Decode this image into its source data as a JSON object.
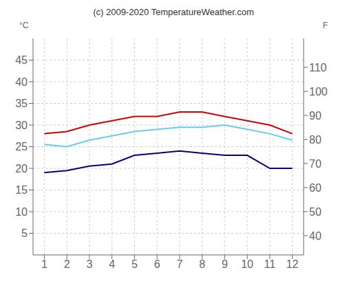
{
  "chart_data": {
    "type": "line",
    "title": "(c) 2009-2020 TemperatureWeather.com",
    "ylabel": "°C",
    "y2label": "F",
    "x": [
      1,
      2,
      3,
      4,
      5,
      6,
      7,
      8,
      9,
      10,
      11,
      12
    ],
    "series": [
      {
        "color": "#cc0000",
        "values": [
          28,
          28.5,
          30,
          31,
          32,
          32,
          33,
          33,
          32,
          31,
          30,
          28
        ]
      },
      {
        "color": "#66ccee",
        "values": [
          25.5,
          25,
          26.5,
          27.5,
          28.5,
          29,
          29.5,
          29.5,
          30,
          29,
          28,
          26.5
        ]
      },
      {
        "color": "#000080",
        "values": [
          19,
          19.5,
          20.5,
          21,
          23,
          23.5,
          24,
          23.5,
          23,
          23,
          20,
          20
        ]
      }
    ],
    "xlim": [
      0.5,
      12.5
    ],
    "xticks": [
      1,
      2,
      3,
      4,
      5,
      6,
      7,
      8,
      9,
      10,
      11,
      12
    ],
    "ylim": [
      0,
      50
    ],
    "yticks": [
      5,
      10,
      15,
      20,
      25,
      30,
      35,
      40,
      45
    ],
    "y2lim": [
      32,
      122
    ],
    "y2ticks": [
      40,
      50,
      60,
      70,
      80,
      90,
      100,
      110
    ],
    "grid": true
  }
}
